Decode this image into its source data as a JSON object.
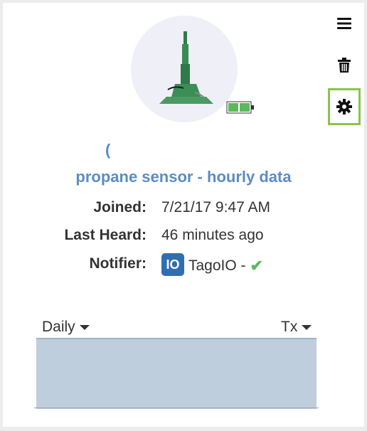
{
  "device": {
    "paren": "(",
    "name": "propane sensor - hourly data"
  },
  "info": {
    "joined_label": "Joined:",
    "joined_value": "7/21/17 9:47 AM",
    "last_heard_label": "Last Heard:",
    "last_heard_value": "46 minutes ago",
    "notifier_label": "Notifier:",
    "notifier_logo_text": "IO",
    "notifier_value": "TagoIO -",
    "notifier_status_icon": "check-icon"
  },
  "toolbar": {
    "icons": [
      "menu-icon",
      "trash-icon",
      "gear-icon"
    ]
  },
  "chart_controls": {
    "period": "Daily",
    "metric": "Tx"
  },
  "colors": {
    "accent": "#5b8cc4",
    "settings_border": "#8bc34a",
    "battery": "#5cb85c",
    "chart_fill": "#bfcedc",
    "check": "#5cb85c"
  }
}
